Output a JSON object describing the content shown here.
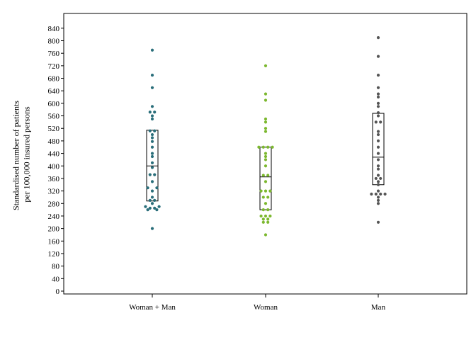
{
  "chart_data": {
    "type": "scatter",
    "subtype": "dot-plot-with-boxplot",
    "ylabel_lines": [
      "Standardised number of patients",
      "per 100,000 insured persons"
    ],
    "ylim": [
      0,
      860
    ],
    "yticks": [
      0,
      40,
      80,
      120,
      160,
      200,
      240,
      280,
      320,
      360,
      400,
      440,
      480,
      520,
      560,
      600,
      640,
      680,
      720,
      760,
      800,
      840
    ],
    "grid": false,
    "categories": [
      "Woman + Man",
      "Woman",
      "Man"
    ],
    "series": [
      {
        "category": "Woman + Man",
        "color": "#2a6e7a",
        "box": {
          "q1": 288,
          "median": 400,
          "q3": 514
        },
        "points": [
          {
            "y": 770,
            "offset": 0
          },
          {
            "y": 690,
            "offset": 0
          },
          {
            "y": 650,
            "offset": 0
          },
          {
            "y": 590,
            "offset": 0
          },
          {
            "y": 572,
            "offset": -1
          },
          {
            "y": 572,
            "offset": 1
          },
          {
            "y": 560,
            "offset": 0
          },
          {
            "y": 550,
            "offset": 0
          },
          {
            "y": 512,
            "offset": -1
          },
          {
            "y": 512,
            "offset": 1
          },
          {
            "y": 500,
            "offset": 0
          },
          {
            "y": 490,
            "offset": 0
          },
          {
            "y": 478,
            "offset": 0
          },
          {
            "y": 460,
            "offset": 0
          },
          {
            "y": 440,
            "offset": 0
          },
          {
            "y": 430,
            "offset": 0
          },
          {
            "y": 410,
            "offset": 0
          },
          {
            "y": 395,
            "offset": 0
          },
          {
            "y": 372,
            "offset": -1
          },
          {
            "y": 372,
            "offset": 1
          },
          {
            "y": 350,
            "offset": 0
          },
          {
            "y": 330,
            "offset": -2
          },
          {
            "y": 330,
            "offset": 2
          },
          {
            "y": 320,
            "offset": 0
          },
          {
            "y": 300,
            "offset": 0
          },
          {
            "y": 290,
            "offset": -1
          },
          {
            "y": 290,
            "offset": 1
          },
          {
            "y": 280,
            "offset": 0
          },
          {
            "y": 270,
            "offset": -3
          },
          {
            "y": 270,
            "offset": 3
          },
          {
            "y": 265,
            "offset": -1
          },
          {
            "y": 265,
            "offset": 1
          },
          {
            "y": 260,
            "offset": -2
          },
          {
            "y": 260,
            "offset": 2
          },
          {
            "y": 200,
            "offset": 0
          }
        ]
      },
      {
        "category": "Woman",
        "color": "#7cb82f",
        "box": {
          "q1": 260,
          "median": 365,
          "q3": 460
        },
        "points": [
          {
            "y": 720,
            "offset": 0
          },
          {
            "y": 630,
            "offset": 0
          },
          {
            "y": 610,
            "offset": 0
          },
          {
            "y": 550,
            "offset": 0
          },
          {
            "y": 540,
            "offset": 0
          },
          {
            "y": 520,
            "offset": 0
          },
          {
            "y": 510,
            "offset": 0
          },
          {
            "y": 460,
            "offset": -3
          },
          {
            "y": 460,
            "offset": -1
          },
          {
            "y": 460,
            "offset": 1
          },
          {
            "y": 460,
            "offset": 3
          },
          {
            "y": 440,
            "offset": 0
          },
          {
            "y": 430,
            "offset": 0
          },
          {
            "y": 420,
            "offset": 0
          },
          {
            "y": 400,
            "offset": 0
          },
          {
            "y": 370,
            "offset": -1
          },
          {
            "y": 370,
            "offset": 1
          },
          {
            "y": 350,
            "offset": 0
          },
          {
            "y": 320,
            "offset": -2
          },
          {
            "y": 320,
            "offset": 0
          },
          {
            "y": 320,
            "offset": 2
          },
          {
            "y": 300,
            "offset": -1
          },
          {
            "y": 300,
            "offset": 1
          },
          {
            "y": 280,
            "offset": 0
          },
          {
            "y": 260,
            "offset": -1
          },
          {
            "y": 260,
            "offset": 1
          },
          {
            "y": 240,
            "offset": -2
          },
          {
            "y": 240,
            "offset": 0
          },
          {
            "y": 240,
            "offset": 2
          },
          {
            "y": 230,
            "offset": -1
          },
          {
            "y": 230,
            "offset": 1
          },
          {
            "y": 220,
            "offset": -1
          },
          {
            "y": 220,
            "offset": 1
          },
          {
            "y": 180,
            "offset": 0
          }
        ]
      },
      {
        "category": "Man",
        "color": "#555555",
        "box": {
          "q1": 340,
          "median": 428,
          "q3": 568
        },
        "points": [
          {
            "y": 810,
            "offset": 0
          },
          {
            "y": 750,
            "offset": 0
          },
          {
            "y": 690,
            "offset": 0
          },
          {
            "y": 650,
            "offset": 0
          },
          {
            "y": 630,
            "offset": 0
          },
          {
            "y": 620,
            "offset": 0
          },
          {
            "y": 600,
            "offset": 0
          },
          {
            "y": 590,
            "offset": 0
          },
          {
            "y": 570,
            "offset": 0
          },
          {
            "y": 560,
            "offset": 0
          },
          {
            "y": 540,
            "offset": -1
          },
          {
            "y": 540,
            "offset": 1
          },
          {
            "y": 510,
            "offset": 0
          },
          {
            "y": 500,
            "offset": 0
          },
          {
            "y": 480,
            "offset": 0
          },
          {
            "y": 460,
            "offset": 0
          },
          {
            "y": 440,
            "offset": 0
          },
          {
            "y": 420,
            "offset": 0
          },
          {
            "y": 400,
            "offset": 0
          },
          {
            "y": 390,
            "offset": 0
          },
          {
            "y": 370,
            "offset": 0
          },
          {
            "y": 360,
            "offset": -1
          },
          {
            "y": 360,
            "offset": 1
          },
          {
            "y": 350,
            "offset": 0
          },
          {
            "y": 340,
            "offset": 0
          },
          {
            "y": 320,
            "offset": 0
          },
          {
            "y": 310,
            "offset": -3
          },
          {
            "y": 310,
            "offset": -1
          },
          {
            "y": 310,
            "offset": 1
          },
          {
            "y": 310,
            "offset": 3
          },
          {
            "y": 300,
            "offset": 0
          },
          {
            "y": 290,
            "offset": 0
          },
          {
            "y": 280,
            "offset": 0
          },
          {
            "y": 220,
            "offset": 0
          }
        ]
      }
    ]
  }
}
